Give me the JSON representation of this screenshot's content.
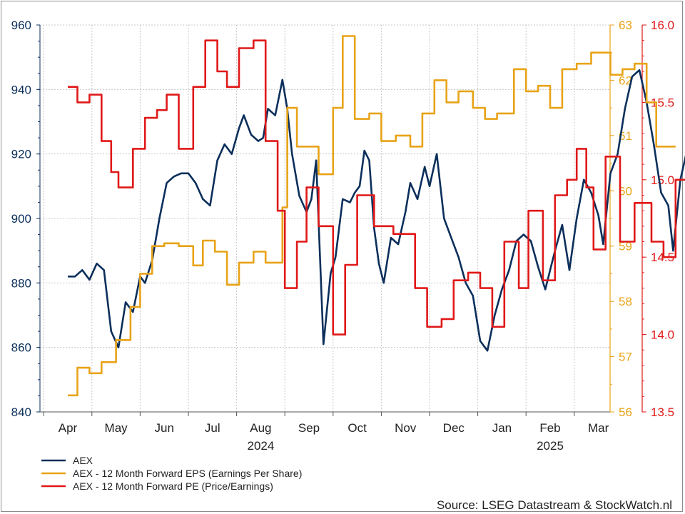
{
  "chart_data": {
    "type": "line",
    "source": "Source: LSEG Datastream & StockWatch.nl",
    "x_months": [
      "Apr",
      "May",
      "Jun",
      "Jul",
      "Aug",
      "Sep",
      "Oct",
      "Nov",
      "Dec",
      "Jan",
      "Feb",
      "Mar"
    ],
    "x_years": [
      "2024",
      "2025"
    ],
    "axes": {
      "left": {
        "range": [
          840,
          960
        ],
        "ticks": [
          "960",
          "940",
          "920",
          "900",
          "880",
          "860",
          "840"
        ],
        "color": "#0b2f5b"
      },
      "right1": {
        "range": [
          56,
          63
        ],
        "ticks": [
          "63",
          "62",
          "61",
          "60",
          "59",
          "58",
          "57",
          "56"
        ],
        "color": "#e8a317"
      },
      "right2": {
        "range": [
          13.5,
          16.0
        ],
        "ticks": [
          "16.0",
          "15.5",
          "15.0",
          "14.5",
          "14.0",
          "13.5"
        ],
        "color": "#e01818"
      }
    },
    "grid": true,
    "legend_position": "bottom-left",
    "series": [
      {
        "name": "AEX",
        "axis": "left",
        "color": "#0b2f5b",
        "values": [
          [
            0,
            882
          ],
          [
            0.15,
            882
          ],
          [
            0.3,
            884
          ],
          [
            0.45,
            881
          ],
          [
            0.6,
            886
          ],
          [
            0.75,
            884
          ],
          [
            0.9,
            865
          ],
          [
            1.05,
            860
          ],
          [
            1.2,
            874
          ],
          [
            1.35,
            871
          ],
          [
            1.5,
            882
          ],
          [
            1.6,
            880
          ],
          [
            1.75,
            887
          ],
          [
            1.9,
            900
          ],
          [
            2.05,
            911
          ],
          [
            2.2,
            913
          ],
          [
            2.35,
            914
          ],
          [
            2.5,
            914
          ],
          [
            2.65,
            911
          ],
          [
            2.8,
            906
          ],
          [
            2.95,
            904
          ],
          [
            3.1,
            918
          ],
          [
            3.25,
            923
          ],
          [
            3.4,
            920
          ],
          [
            3.55,
            928
          ],
          [
            3.65,
            932
          ],
          [
            3.8,
            926
          ],
          [
            3.95,
            924
          ],
          [
            4.05,
            925
          ],
          [
            4.15,
            934
          ],
          [
            4.3,
            932
          ],
          [
            4.45,
            943
          ],
          [
            4.55,
            934
          ],
          [
            4.65,
            920
          ],
          [
            4.8,
            907
          ],
          [
            4.95,
            902
          ],
          [
            5.05,
            906
          ],
          [
            5.15,
            918
          ],
          [
            5.3,
            861
          ],
          [
            5.45,
            883
          ],
          [
            5.55,
            888
          ],
          [
            5.7,
            906
          ],
          [
            5.85,
            905
          ],
          [
            5.95,
            908
          ],
          [
            6.05,
            910
          ],
          [
            6.15,
            921
          ],
          [
            6.25,
            918
          ],
          [
            6.35,
            897
          ],
          [
            6.45,
            886
          ],
          [
            6.55,
            880
          ],
          [
            6.7,
            894
          ],
          [
            6.85,
            892
          ],
          [
            7.0,
            902
          ],
          [
            7.1,
            911
          ],
          [
            7.25,
            906
          ],
          [
            7.4,
            916
          ],
          [
            7.5,
            910
          ],
          [
            7.65,
            920
          ],
          [
            7.8,
            900
          ],
          [
            7.95,
            894
          ],
          [
            8.1,
            888
          ],
          [
            8.25,
            880
          ],
          [
            8.4,
            876
          ],
          [
            8.55,
            862
          ],
          [
            8.7,
            859
          ],
          [
            8.85,
            870
          ],
          [
            9.0,
            878
          ],
          [
            9.15,
            884
          ],
          [
            9.3,
            893
          ],
          [
            9.45,
            895
          ],
          [
            9.6,
            893
          ],
          [
            9.75,
            885
          ],
          [
            9.9,
            878
          ],
          [
            10.0,
            884
          ],
          [
            10.1,
            890
          ],
          [
            10.25,
            898
          ],
          [
            10.4,
            884
          ],
          [
            10.55,
            900
          ],
          [
            10.7,
            912
          ],
          [
            10.85,
            908
          ],
          [
            11.0,
            901
          ],
          [
            11.1,
            892
          ],
          [
            11.25,
            914
          ],
          [
            11.4,
            920
          ],
          [
            11.55,
            934
          ],
          [
            11.7,
            944
          ],
          [
            11.85,
            946
          ],
          [
            12.0,
            936
          ],
          [
            12.15,
            923
          ],
          [
            12.3,
            908
          ],
          [
            12.45,
            904
          ],
          [
            12.55,
            890
          ],
          [
            12.7,
            912
          ],
          [
            12.85,
            922
          ],
          [
            13.0,
            918
          ],
          [
            13.15,
            918
          ],
          [
            13.3,
            903
          ]
        ]
      },
      {
        "name": "AEX - 12 Month Forward EPS (Earnings Per Share)",
        "axis": "right1",
        "color": "#e8a317",
        "values": [
          [
            0,
            56.3
          ],
          [
            0.2,
            56.3
          ],
          [
            0.2,
            56.8
          ],
          [
            0.45,
            56.8
          ],
          [
            0.45,
            56.7
          ],
          [
            0.7,
            56.7
          ],
          [
            0.7,
            56.9
          ],
          [
            1.0,
            56.9
          ],
          [
            1.0,
            57.3
          ],
          [
            1.3,
            57.3
          ],
          [
            1.3,
            57.9
          ],
          [
            1.5,
            57.9
          ],
          [
            1.5,
            58.5
          ],
          [
            1.75,
            58.5
          ],
          [
            1.75,
            59.0
          ],
          [
            2.0,
            59.0
          ],
          [
            2.0,
            59.05
          ],
          [
            2.3,
            59.05
          ],
          [
            2.3,
            59.0
          ],
          [
            2.6,
            59.0
          ],
          [
            2.6,
            58.65
          ],
          [
            2.8,
            58.65
          ],
          [
            2.8,
            59.1
          ],
          [
            3.05,
            59.1
          ],
          [
            3.05,
            58.9
          ],
          [
            3.3,
            58.9
          ],
          [
            3.3,
            58.3
          ],
          [
            3.55,
            58.3
          ],
          [
            3.55,
            58.7
          ],
          [
            3.85,
            58.7
          ],
          [
            3.85,
            58.9
          ],
          [
            4.1,
            58.9
          ],
          [
            4.1,
            58.7
          ],
          [
            4.45,
            58.7
          ],
          [
            4.45,
            59.7
          ],
          [
            4.55,
            59.7
          ],
          [
            4.55,
            61.5
          ],
          [
            4.75,
            61.5
          ],
          [
            4.75,
            60.8
          ],
          [
            5.2,
            60.8
          ],
          [
            5.2,
            60.3
          ],
          [
            5.5,
            60.3
          ],
          [
            5.5,
            61.5
          ],
          [
            5.7,
            61.5
          ],
          [
            5.7,
            62.8
          ],
          [
            5.95,
            62.8
          ],
          [
            5.95,
            61.3
          ],
          [
            6.25,
            61.3
          ],
          [
            6.25,
            61.4
          ],
          [
            6.5,
            61.4
          ],
          [
            6.5,
            60.9
          ],
          [
            6.8,
            60.9
          ],
          [
            6.8,
            61.0
          ],
          [
            7.1,
            61.0
          ],
          [
            7.1,
            60.8
          ],
          [
            7.35,
            60.8
          ],
          [
            7.35,
            61.4
          ],
          [
            7.6,
            61.4
          ],
          [
            7.6,
            62.0
          ],
          [
            7.85,
            62.0
          ],
          [
            7.85,
            61.6
          ],
          [
            8.1,
            61.6
          ],
          [
            8.1,
            61.8
          ],
          [
            8.4,
            61.8
          ],
          [
            8.4,
            61.5
          ],
          [
            8.65,
            61.5
          ],
          [
            8.65,
            61.3
          ],
          [
            8.9,
            61.3
          ],
          [
            8.9,
            61.4
          ],
          [
            9.25,
            61.4
          ],
          [
            9.25,
            62.2
          ],
          [
            9.5,
            62.2
          ],
          [
            9.5,
            61.8
          ],
          [
            9.75,
            61.8
          ],
          [
            9.75,
            61.9
          ],
          [
            10.0,
            61.9
          ],
          [
            10.0,
            61.5
          ],
          [
            10.25,
            61.5
          ],
          [
            10.25,
            62.2
          ],
          [
            10.55,
            62.2
          ],
          [
            10.55,
            62.3
          ],
          [
            10.85,
            62.3
          ],
          [
            10.85,
            62.5
          ],
          [
            11.25,
            62.5
          ],
          [
            11.25,
            62.1
          ],
          [
            11.5,
            62.1
          ],
          [
            11.5,
            62.2
          ],
          [
            11.75,
            62.2
          ],
          [
            11.75,
            62.3
          ],
          [
            12.0,
            62.3
          ],
          [
            12.0,
            61.6
          ],
          [
            12.2,
            61.6
          ],
          [
            12.2,
            60.8
          ],
          [
            12.6,
            60.8
          ]
        ]
      },
      {
        "name": "AEX - 12 Month Forward PE (Price/Earnings)",
        "axis": "right2",
        "color": "#e01818",
        "values": [
          [
            0,
            15.6
          ],
          [
            0.2,
            15.6
          ],
          [
            0.2,
            15.5
          ],
          [
            0.45,
            15.5
          ],
          [
            0.45,
            15.55
          ],
          [
            0.7,
            15.55
          ],
          [
            0.7,
            15.25
          ],
          [
            0.9,
            15.25
          ],
          [
            0.9,
            15.05
          ],
          [
            1.05,
            15.05
          ],
          [
            1.05,
            14.95
          ],
          [
            1.35,
            14.95
          ],
          [
            1.35,
            15.2
          ],
          [
            1.6,
            15.2
          ],
          [
            1.6,
            15.4
          ],
          [
            1.85,
            15.4
          ],
          [
            1.85,
            15.45
          ],
          [
            2.05,
            15.45
          ],
          [
            2.05,
            15.55
          ],
          [
            2.3,
            15.55
          ],
          [
            2.3,
            15.2
          ],
          [
            2.6,
            15.2
          ],
          [
            2.6,
            15.6
          ],
          [
            2.85,
            15.6
          ],
          [
            2.85,
            15.9
          ],
          [
            3.1,
            15.9
          ],
          [
            3.1,
            15.7
          ],
          [
            3.3,
            15.7
          ],
          [
            3.3,
            15.6
          ],
          [
            3.55,
            15.6
          ],
          [
            3.55,
            15.85
          ],
          [
            3.85,
            15.85
          ],
          [
            3.85,
            15.9
          ],
          [
            4.1,
            15.9
          ],
          [
            4.1,
            15.25
          ],
          [
            4.35,
            15.25
          ],
          [
            4.35,
            14.8
          ],
          [
            4.5,
            14.8
          ],
          [
            4.5,
            14.3
          ],
          [
            4.75,
            14.3
          ],
          [
            4.75,
            14.6
          ],
          [
            4.95,
            14.6
          ],
          [
            4.95,
            14.95
          ],
          [
            5.2,
            14.95
          ],
          [
            5.2,
            14.7
          ],
          [
            5.5,
            14.7
          ],
          [
            5.5,
            14.0
          ],
          [
            5.75,
            14.0
          ],
          [
            5.75,
            14.45
          ],
          [
            6.0,
            14.45
          ],
          [
            6.0,
            14.9
          ],
          [
            6.35,
            14.9
          ],
          [
            6.35,
            14.7
          ],
          [
            6.75,
            14.7
          ],
          [
            6.75,
            14.65
          ],
          [
            7.2,
            14.65
          ],
          [
            7.2,
            14.3
          ],
          [
            7.45,
            14.3
          ],
          [
            7.45,
            14.05
          ],
          [
            7.75,
            14.05
          ],
          [
            7.75,
            14.1
          ],
          [
            8.0,
            14.1
          ],
          [
            8.0,
            14.35
          ],
          [
            8.3,
            14.35
          ],
          [
            8.3,
            14.4
          ],
          [
            8.55,
            14.4
          ],
          [
            8.55,
            14.3
          ],
          [
            8.8,
            14.3
          ],
          [
            8.8,
            14.05
          ],
          [
            9.05,
            14.05
          ],
          [
            9.05,
            14.6
          ],
          [
            9.35,
            14.6
          ],
          [
            9.35,
            14.3
          ],
          [
            9.55,
            14.3
          ],
          [
            9.55,
            14.8
          ],
          [
            9.85,
            14.8
          ],
          [
            9.85,
            14.35
          ],
          [
            10.1,
            14.35
          ],
          [
            10.1,
            14.9
          ],
          [
            10.35,
            14.9
          ],
          [
            10.35,
            15.0
          ],
          [
            10.55,
            15.0
          ],
          [
            10.55,
            15.2
          ],
          [
            10.75,
            15.2
          ],
          [
            10.75,
            14.95
          ],
          [
            10.9,
            14.95
          ],
          [
            10.9,
            14.55
          ],
          [
            11.15,
            14.55
          ],
          [
            11.15,
            15.15
          ],
          [
            11.45,
            15.15
          ],
          [
            11.45,
            14.6
          ],
          [
            11.75,
            14.6
          ],
          [
            11.75,
            14.85
          ],
          [
            12.1,
            14.85
          ],
          [
            12.1,
            14.6
          ],
          [
            12.35,
            14.6
          ],
          [
            12.35,
            14.5
          ],
          [
            12.6,
            14.5
          ],
          [
            12.6,
            15.0
          ],
          [
            12.85,
            15.0
          ]
        ]
      }
    ]
  }
}
